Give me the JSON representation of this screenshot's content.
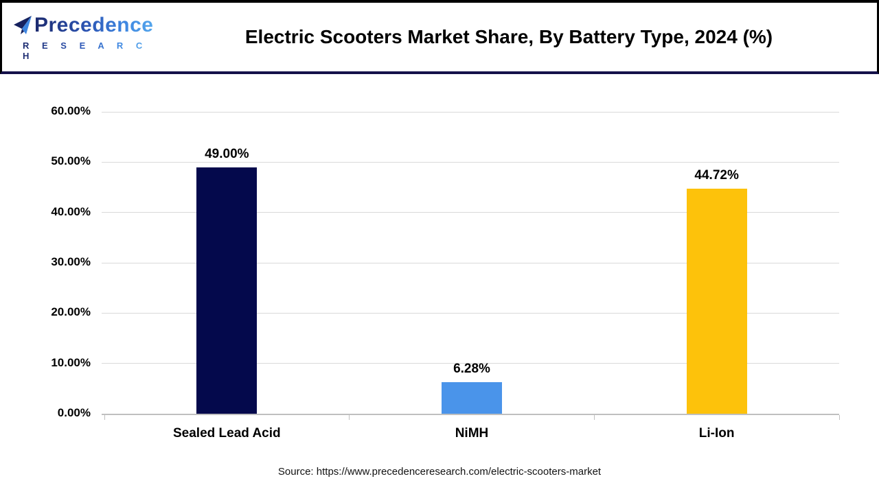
{
  "header": {
    "logo": {
      "name": "Precedence",
      "subtext": "R E S E A R C H"
    },
    "title": "Electric Scooters Market Share, By Battery Type, 2024 (%)"
  },
  "chart_data": {
    "type": "bar",
    "title": "Electric Scooters Market Share, By Battery Type, 2024 (%)",
    "categories": [
      "Sealed Lead Acid",
      "NiMH",
      "Li-Ion"
    ],
    "values": [
      49.0,
      6.28,
      44.72
    ],
    "value_labels": [
      "49.00%",
      "6.28%",
      "44.72%"
    ],
    "bar_colors": [
      "#04094c",
      "#4a94ea",
      "#fdc20b"
    ],
    "xlabel": "",
    "ylabel": "",
    "ylim": [
      0,
      60
    ],
    "ytick_step": 10,
    "ytick_labels": [
      "0.00%",
      "10.00%",
      "20.00%",
      "30.00%",
      "40.00%",
      "50.00%",
      "60.00%"
    ],
    "grid": true,
    "legend": false
  },
  "theme": {
    "gridline_color": "#d9d9d9",
    "axis_color": "#bfbfbf",
    "header_divider_color": "#15114a",
    "border_color": "#000000",
    "logo_navy": "#1c2a6e",
    "logo_blue": "#3d85e0"
  },
  "footer": {
    "source": "Source: https://www.precedenceresearch.com/electric-scooters-market"
  }
}
